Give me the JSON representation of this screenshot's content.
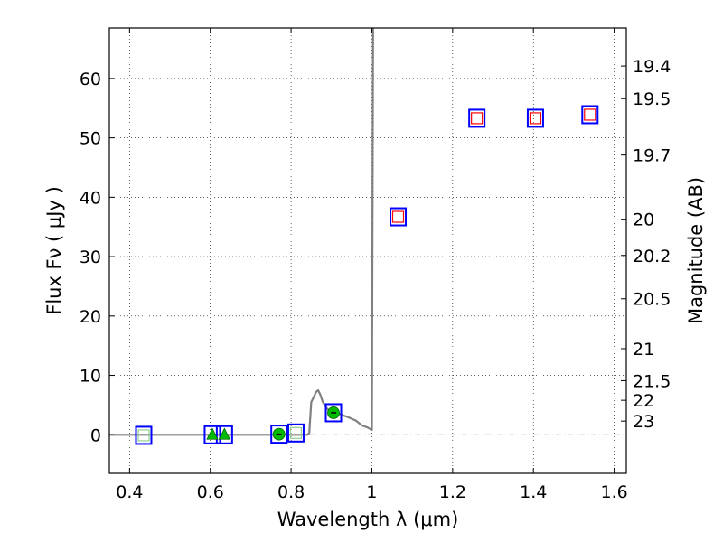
{
  "chart_data": {
    "type": "scatter",
    "title": "",
    "xlabel": "Wavelength  λ (μm)",
    "ylabel": "Flux  Fν  ( μJy )",
    "ylabel_right": "Magnitude (AB)",
    "xlim": [
      0.35,
      1.63
    ],
    "ylim": [
      -6.5,
      68.5
    ],
    "grid": true,
    "x_ticks": [
      0.4,
      0.6,
      0.8,
      1.0,
      1.2,
      1.4,
      1.6
    ],
    "x_tick_labels": [
      "0.4",
      "0.6",
      "0.8",
      "1",
      "1.2",
      "1.4",
      "1.6"
    ],
    "y_ticks": [
      0,
      10,
      20,
      30,
      40,
      50,
      60
    ],
    "y_tick_labels": [
      "0",
      "10",
      "20",
      "30",
      "40",
      "50",
      "60"
    ],
    "mag_ticks": [
      {
        "label": "19.4",
        "flux": 62.1
      },
      {
        "label": "19.5",
        "flux": 56.6
      },
      {
        "label": "19.7",
        "flux": 47.1
      },
      {
        "label": "20",
        "flux": 36.3
      },
      {
        "label": "20.2",
        "flux": 30.2
      },
      {
        "label": "20.5",
        "flux": 22.9
      },
      {
        "label": "21",
        "flux": 14.5
      },
      {
        "label": "21.5",
        "flux": 9.1
      },
      {
        "label": "22",
        "flux": 5.8
      },
      {
        "label": "23",
        "flux": 2.3
      }
    ],
    "series": [
      {
        "name": "model spectrum",
        "kind": "line",
        "color": "#808080",
        "points": [
          [
            0.35,
            0
          ],
          [
            0.84,
            0.0
          ],
          [
            0.845,
            0.3
          ],
          [
            0.85,
            5.5
          ],
          [
            0.855,
            6.2
          ],
          [
            0.862,
            7.2
          ],
          [
            0.867,
            7.5
          ],
          [
            0.872,
            6.8
          ],
          [
            0.878,
            5.6
          ],
          [
            0.885,
            4.8
          ],
          [
            0.89,
            4.3
          ],
          [
            0.9,
            4.0
          ],
          [
            0.92,
            3.5
          ],
          [
            0.94,
            3.0
          ],
          [
            0.96,
            2.4
          ],
          [
            0.975,
            1.6
          ],
          [
            0.99,
            1.2
          ],
          [
            1.0,
            0.8
          ],
          [
            1.003,
            68.5
          ]
        ]
      },
      {
        "name": "photometry (blue squares)",
        "kind": "square-outline",
        "color": "#0000ff",
        "points": [
          [
            0.435,
            -0.1
          ],
          [
            0.605,
            0.0
          ],
          [
            0.635,
            0.0
          ],
          [
            0.77,
            0.1
          ],
          [
            0.812,
            0.3
          ],
          [
            0.905,
            3.7
          ],
          [
            1.065,
            36.7
          ],
          [
            1.26,
            53.3
          ],
          [
            1.405,
            53.3
          ],
          [
            1.54,
            53.9
          ]
        ]
      },
      {
        "name": "model photometry (red squares)",
        "kind": "square-outline-small",
        "color": "#ff0000",
        "points": [
          [
            1.065,
            36.7
          ],
          [
            1.26,
            53.3
          ],
          [
            1.405,
            53.3
          ],
          [
            1.54,
            53.9
          ]
        ]
      },
      {
        "name": "model photometry (faint squares)",
        "kind": "square-outline-small",
        "color": "#8fd18f",
        "points": [
          [
            0.435,
            -0.1
          ],
          [
            0.812,
            0.3
          ]
        ]
      },
      {
        "name": "upper limits (green triangles)",
        "kind": "triangle",
        "color": "#00bb00",
        "points": [
          [
            0.605,
            0.0
          ],
          [
            0.635,
            0.0
          ]
        ]
      },
      {
        "name": "detections (green circles)",
        "kind": "circle",
        "color": "#00bb00",
        "points": [
          [
            0.77,
            0.1
          ],
          [
            0.905,
            3.7
          ]
        ]
      }
    ]
  }
}
